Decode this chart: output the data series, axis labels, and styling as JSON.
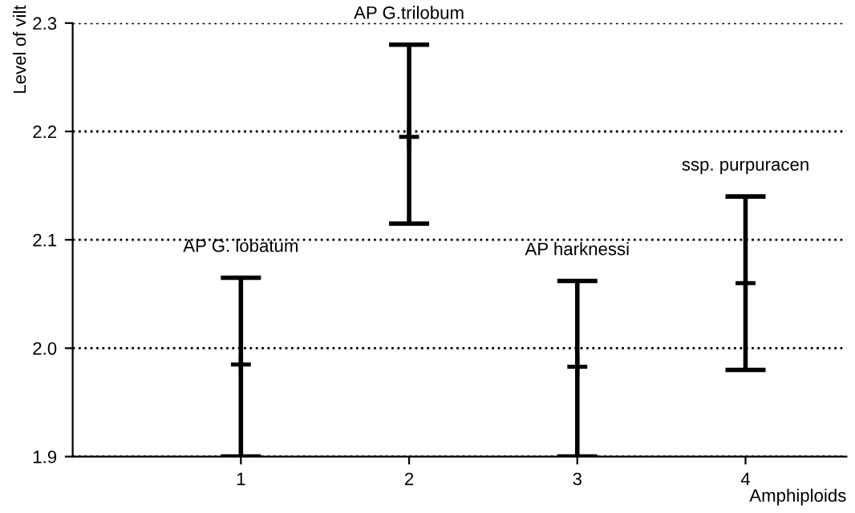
{
  "chart_data": {
    "type": "scatter",
    "xlabel": "Amphiploids",
    "ylabel": "Level of vilt",
    "x": [
      1,
      2,
      3,
      4
    ],
    "values": [
      1.985,
      2.195,
      1.983,
      2.06
    ],
    "errors": [
      [
        1.9,
        2.065
      ],
      [
        2.115,
        2.28
      ],
      [
        1.9,
        2.062
      ],
      [
        1.98,
        2.14
      ]
    ],
    "color": "#000000",
    "xlim": [
      0,
      4.6
    ],
    "ylim": [
      1.9,
      2.3
    ],
    "xticks": [
      1,
      2,
      3,
      4
    ],
    "yticks": [
      1.9,
      {
        "value": 2,
        "label": "2.0"
      },
      2.1,
      2.2,
      2.3
    ],
    "grid": "y",
    "marker": "cross",
    "line_style": "dotted",
    "annotations": [
      {
        "text": "AP G. lobatum",
        "x": 1,
        "y": 2.065
      },
      {
        "text": "AP G.trilobum",
        "x": 2,
        "y": 2.28
      },
      {
        "text": "AP harknessi",
        "x": 3,
        "y": 2.062
      },
      {
        "text": "ssp. purpuracen",
        "x": 4,
        "y": 2.14
      }
    ]
  }
}
